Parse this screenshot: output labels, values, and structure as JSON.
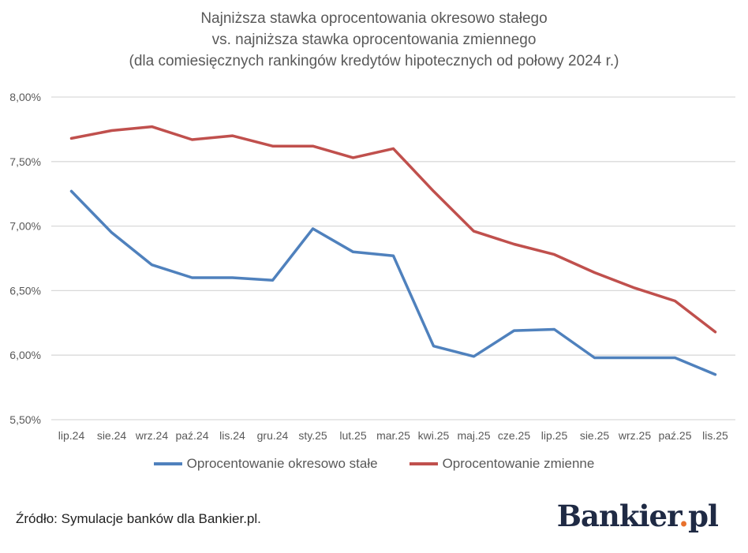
{
  "chart_data": {
    "type": "line",
    "title": [
      "Najniższa stawka oprocentowania okresowo stałego",
      "vs. najniższa stawka oprocentowania zmiennego",
      "(dla comiesięcznych  rankingów kredytów hipotecznych od połowy 2024 r.)"
    ],
    "categories": [
      "lip.24",
      "sie.24",
      "wrz.24",
      "paź.24",
      "lis.24",
      "gru.24",
      "sty.25",
      "lut.25",
      "mar.25",
      "kwi.25",
      "maj.25",
      "cze.25",
      "lip.25",
      "sie.25",
      "wrz.25",
      "paź.25",
      "lis.25"
    ],
    "series": [
      {
        "name": "Oprocentowanie okresowo stałe",
        "color": "#4f81bd",
        "values": [
          7.27,
          6.95,
          6.7,
          6.6,
          6.6,
          6.58,
          6.98,
          6.8,
          6.77,
          6.07,
          5.99,
          6.19,
          6.2,
          5.98,
          5.98,
          5.98,
          5.85
        ]
      },
      {
        "name": "Oprocentowanie zmienne",
        "color": "#c0504d",
        "values": [
          7.68,
          7.74,
          7.77,
          7.67,
          7.7,
          7.62,
          7.62,
          7.53,
          7.6,
          7.27,
          6.96,
          6.86,
          6.78,
          6.64,
          6.52,
          6.42,
          6.18
        ]
      }
    ],
    "ylim": [
      5.5,
      8.0
    ],
    "yticks": [
      "5,50%",
      "6,00%",
      "6,50%",
      "7,00%",
      "7,50%",
      "8,00%"
    ],
    "grid": true,
    "legend": "bottom"
  },
  "source": "Źródło: Symulacje banków dla Bankier.pl.",
  "logo": {
    "text": "Bankier",
    "dot": ".",
    "suffix": "pl",
    "accent": "#e8712c"
  }
}
